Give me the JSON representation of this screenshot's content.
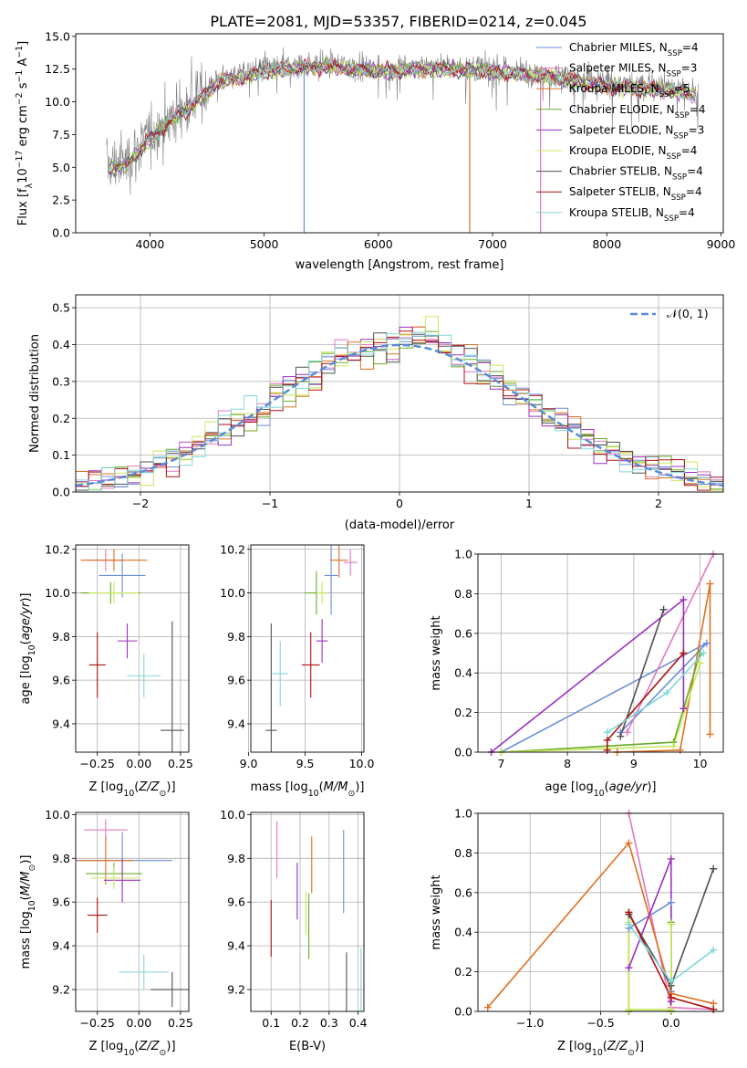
{
  "figure_title": "PLATE=2081, MJD=53357, FIBERID=0214, z=0.045",
  "chart_data": [
    {
      "id": "spectrum",
      "type": "line",
      "title": "PLATE=2081, MJD=53357, FIBERID=0214, z=0.045",
      "xlabel": "wavelength [Angstrom, rest frame]",
      "ylabel": "Flux [f_λ 10^-17 erg cm^-2 s^-1 A^-1]",
      "xlim": [
        3350,
        9020
      ],
      "ylim": [
        0,
        15.2
      ],
      "xticks": [
        4000,
        5000,
        6000,
        7000,
        8000,
        9000
      ],
      "yticks": [
        0.0,
        2.5,
        5.0,
        7.5,
        10.0,
        12.5,
        15.0
      ],
      "grid": false,
      "legend_position": "upper-right",
      "data_envelope": [
        [
          3620,
          5.2
        ],
        [
          3800,
          5.5
        ],
        [
          4000,
          7.5
        ],
        [
          4300,
          9.6
        ],
        [
          4600,
          11.8
        ],
        [
          5000,
          12.6
        ],
        [
          5500,
          13.0
        ],
        [
          6000,
          12.6
        ],
        [
          6500,
          12.8
        ],
        [
          7000,
          12.6
        ],
        [
          7500,
          12.2
        ],
        [
          8000,
          11.5
        ],
        [
          8500,
          11.2
        ],
        [
          8800,
          10.8
        ]
      ],
      "data_color": "#808080",
      "series": [
        {
          "name": "Chabrier MILES, N_SSP=4",
          "sub": "SSP",
          "num": "4",
          "color": "#6a8fd8",
          "drop_x": 5350
        },
        {
          "name": "Salpeter MILES, N_SSP=3",
          "sub": "SSP",
          "num": "3",
          "color": "#e377c2",
          "drop_x": 7420
        },
        {
          "name": "Kroupa MILES, N_SSP=5",
          "sub": "SSP",
          "num": "5",
          "color": "#e07020",
          "drop_x": 6800
        },
        {
          "name": "Chabrier ELODIE, N_SSP=4",
          "sub": "SSP",
          "num": "4",
          "color": "#6aaa2a"
        },
        {
          "name": "Salpeter ELODIE, N_SSP=3",
          "sub": "SSP",
          "num": "3",
          "color": "#9c2fbf"
        },
        {
          "name": "Kroupa ELODIE, N_SSP=4",
          "sub": "SSP",
          "num": "4",
          "color": "#c8e85a"
        },
        {
          "name": "Chabrier STELIB, N_SSP=4",
          "sub": "SSP",
          "num": "4",
          "color": "#505050"
        },
        {
          "name": "Salpeter STELIB, N_SSP=4",
          "sub": "SSP",
          "num": "4",
          "color": "#b01010"
        },
        {
          "name": "Kroupa STELIB, N_SSP=4",
          "sub": "SSP",
          "num": "4",
          "color": "#80d8dc"
        }
      ]
    },
    {
      "id": "residuals",
      "type": "line",
      "xlabel": "(data-model)/error",
      "ylabel": "Normed distribution",
      "xlim": [
        -2.5,
        2.5
      ],
      "ylim": [
        0,
        0.535
      ],
      "xticks": [
        -2,
        -1,
        0,
        1,
        2
      ],
      "xticklabels": [
        "−2",
        "−1",
        "0",
        "1",
        "2"
      ],
      "yticks": [
        0.0,
        0.1,
        0.2,
        0.3,
        0.4,
        0.5
      ],
      "grid": true,
      "legend_position": "upper-right",
      "legend_label": "𝒩(0, 1)",
      "normal_color": "#5b8bd8",
      "hist_bin_width": 0.1,
      "hist_profile": [
        [
          -2.5,
          0.02
        ],
        [
          -2.0,
          0.05
        ],
        [
          -1.5,
          0.13
        ],
        [
          -1.0,
          0.24
        ],
        [
          -0.5,
          0.36
        ],
        [
          0.0,
          0.41
        ],
        [
          0.2,
          0.43
        ],
        [
          0.5,
          0.36
        ],
        [
          1.0,
          0.25
        ],
        [
          1.5,
          0.13
        ],
        [
          2.0,
          0.06
        ],
        [
          2.5,
          0.02
        ]
      ]
    },
    {
      "id": "age-vs-Z",
      "type": "scatter",
      "xlabel": "Z [log10(Z/Z⊙)]",
      "ylabel": "age [log10(age/yr)]",
      "xlim": [
        -0.38,
        0.3
      ],
      "ylim": [
        9.27,
        10.22
      ],
      "xticks": [
        -0.25,
        0.0,
        0.25
      ],
      "xticklabels": [
        "−0.25",
        "0.00",
        "0.25"
      ],
      "yticks": [
        9.4,
        9.6,
        9.8,
        10.0,
        10.2
      ],
      "grid": true,
      "points": [
        {
          "x": -0.1,
          "y": 10.08,
          "xerr": 0.14,
          "yerr": 0.1,
          "color": "#6a8fd8"
        },
        {
          "x": -0.2,
          "y": 10.15,
          "xerr": 0.11,
          "yerr": 0.05,
          "color": "#e377c2"
        },
        {
          "x": -0.15,
          "y": 10.15,
          "xerr": 0.2,
          "yerr": 0.05,
          "color": "#e07020"
        },
        {
          "x": -0.17,
          "y": 10.0,
          "xerr": 0.18,
          "yerr": 0.05,
          "color": "#6aaa2a"
        },
        {
          "x": -0.07,
          "y": 9.78,
          "xerr": 0.06,
          "yerr": 0.08,
          "color": "#9c2fbf"
        },
        {
          "x": -0.15,
          "y": 10.0,
          "xerr": 0.15,
          "yerr": 0.05,
          "color": "#c8e85a"
        },
        {
          "x": 0.2,
          "y": 9.37,
          "xerr": 0.07,
          "yerr": 0.5,
          "color": "#505050"
        },
        {
          "x": -0.25,
          "y": 9.67,
          "xerr": 0.05,
          "yerr": 0.15,
          "color": "#b01010"
        },
        {
          "x": 0.03,
          "y": 9.62,
          "xerr": 0.1,
          "yerr": 0.1,
          "color": "#80d8dc"
        }
      ]
    },
    {
      "id": "age-vs-mass",
      "type": "scatter",
      "xlabel": "mass [log10(M/M⊙)]",
      "ylabel": "",
      "xlim": [
        9.02,
        10.02
      ],
      "ylim": [
        9.27,
        10.22
      ],
      "xticks": [
        9.0,
        9.5,
        10.0
      ],
      "xticklabels": [
        "9.0",
        "9.5",
        "10.0"
      ],
      "yticks": [
        9.4,
        9.6,
        9.8,
        10.0,
        10.2
      ],
      "grid": true,
      "points": [
        {
          "x": 9.73,
          "y": 10.08,
          "xerr": 0.06,
          "yerr": 0.18,
          "color": "#6a8fd8"
        },
        {
          "x": 9.9,
          "y": 10.14,
          "xerr": 0.06,
          "yerr": 0.06,
          "color": "#e377c2"
        },
        {
          "x": 9.8,
          "y": 10.15,
          "xerr": 0.08,
          "yerr": 0.08,
          "color": "#e07020"
        },
        {
          "x": 9.6,
          "y": 10.0,
          "xerr": 0.1,
          "yerr": 0.1,
          "color": "#6aaa2a"
        },
        {
          "x": 9.65,
          "y": 9.78,
          "xerr": 0.05,
          "yerr": 0.1,
          "color": "#9c2fbf"
        },
        {
          "x": 9.65,
          "y": 10.0,
          "xerr": 0.05,
          "yerr": 0.05,
          "color": "#c8e85a"
        },
        {
          "x": 9.2,
          "y": 9.37,
          "xerr": 0.05,
          "yerr": 0.49,
          "color": "#505050"
        },
        {
          "x": 9.55,
          "y": 9.67,
          "xerr": 0.08,
          "yerr": 0.15,
          "color": "#b01010"
        },
        {
          "x": 9.28,
          "y": 9.63,
          "xerr": 0.07,
          "yerr": 0.15,
          "color": "#80d8dc"
        }
      ]
    },
    {
      "id": "massweight-vs-age",
      "type": "line",
      "xlabel": "age [log10(age/yr)]",
      "ylabel": "mass weight",
      "xlim": [
        6.65,
        10.35
      ],
      "ylim": [
        0,
        1.0
      ],
      "xticks": [
        7,
        8,
        9,
        10
      ],
      "yticks": [
        0.0,
        0.2,
        0.4,
        0.6,
        0.8,
        1.0
      ],
      "grid": true,
      "series": [
        {
          "color": "#6a8fd8",
          "points": [
            [
              7.0,
              0.0
            ],
            [
              10.1,
              0.55
            ],
            [
              8.8,
              0.1
            ]
          ]
        },
        {
          "color": "#e377c2",
          "points": [
            [
              8.9,
              0.1
            ],
            [
              10.2,
              1.0
            ]
          ]
        },
        {
          "color": "#e07020",
          "points": [
            [
              8.75,
              0.0
            ],
            [
              9.7,
              0.01
            ],
            [
              10.15,
              0.85
            ],
            [
              10.15,
              0.09
            ]
          ]
        },
        {
          "color": "#6aaa2a",
          "points": [
            [
              7.0,
              0.0
            ],
            [
              9.6,
              0.05
            ],
            [
              10.0,
              0.5
            ]
          ]
        },
        {
          "color": "#9c2fbf",
          "points": [
            [
              6.85,
              0.0
            ],
            [
              9.75,
              0.77
            ],
            [
              9.75,
              0.22
            ]
          ]
        },
        {
          "color": "#c8e85a",
          "points": [
            [
              7.0,
              0.0
            ],
            [
              9.6,
              0.03
            ],
            [
              10.0,
              0.45
            ]
          ]
        },
        {
          "color": "#505050",
          "points": [
            [
              8.8,
              0.08
            ],
            [
              9.45,
              0.72
            ]
          ]
        },
        {
          "color": "#b01010",
          "points": [
            [
              8.6,
              0.01
            ],
            [
              8.6,
              0.06
            ],
            [
              9.75,
              0.5
            ]
          ]
        },
        {
          "color": "#80d8dc",
          "points": [
            [
              8.6,
              0.1
            ],
            [
              9.5,
              0.3
            ],
            [
              10.05,
              0.5
            ]
          ]
        }
      ]
    },
    {
      "id": "mass-vs-Z",
      "type": "scatter",
      "xlabel": "Z [log10(Z/Z⊙)]",
      "ylabel": "mass [log10(M/M⊙)]",
      "xlim": [
        -0.38,
        0.3
      ],
      "ylim": [
        9.1,
        10.01
      ],
      "xticks": [
        -0.25,
        0.0,
        0.25
      ],
      "xticklabels": [
        "−0.25",
        "0.00",
        "0.25"
      ],
      "yticks": [
        9.2,
        9.4,
        9.6,
        9.8,
        10.0
      ],
      "grid": true,
      "points": [
        {
          "x": -0.1,
          "y": 9.79,
          "xerr": 0.3,
          "yerr": 0.13,
          "color": "#6a8fd8"
        },
        {
          "x": -0.2,
          "y": 9.93,
          "xerr": 0.13,
          "yerr": 0.05,
          "color": "#e377c2"
        },
        {
          "x": -0.2,
          "y": 9.79,
          "xerr": 0.17,
          "yerr": 0.11,
          "color": "#e07020"
        },
        {
          "x": -0.15,
          "y": 9.73,
          "xerr": 0.17,
          "yerr": 0.05,
          "color": "#6aaa2a"
        },
        {
          "x": -0.1,
          "y": 9.7,
          "xerr": 0.11,
          "yerr": 0.1,
          "color": "#9c2fbf"
        },
        {
          "x": -0.15,
          "y": 9.71,
          "xerr": 0.14,
          "yerr": 0.05,
          "color": "#c8e85a"
        },
        {
          "x": 0.2,
          "y": 9.2,
          "xerr": 0.13,
          "yerr": 0.08,
          "color": "#505050"
        },
        {
          "x": -0.25,
          "y": 9.54,
          "xerr": 0.06,
          "yerr": 0.08,
          "color": "#b01010"
        },
        {
          "x": 0.03,
          "y": 9.28,
          "xerr": 0.15,
          "yerr": 0.08,
          "color": "#80d8dc"
        }
      ]
    },
    {
      "id": "mass-vs-ebv",
      "type": "scatter",
      "xlabel": "E(B-V)",
      "ylabel": "",
      "xlim": [
        0.03,
        0.42
      ],
      "ylim": [
        9.1,
        10.01
      ],
      "xticks": [
        0.1,
        0.2,
        0.3,
        0.4
      ],
      "xticklabels": [
        "0.1",
        "0.2",
        "0.3",
        "0.4"
      ],
      "yticks": [
        9.2,
        9.4,
        9.6,
        9.8,
        10.0
      ],
      "grid": true,
      "points": [
        {
          "x": 0.35,
          "y": 9.74,
          "yerr": 0.19,
          "color": "#6a8fd8"
        },
        {
          "x": 0.12,
          "y": 9.84,
          "yerr": 0.13,
          "color": "#e377c2"
        },
        {
          "x": 0.24,
          "y": 9.77,
          "yerr": 0.13,
          "color": "#e07020"
        },
        {
          "x": 0.23,
          "y": 9.49,
          "yerr": 0.15,
          "color": "#6aaa2a"
        },
        {
          "x": 0.19,
          "y": 9.65,
          "yerr": 0.13,
          "color": "#9c2fbf"
        },
        {
          "x": 0.22,
          "y": 9.55,
          "yerr": 0.1,
          "color": "#c8e85a"
        },
        {
          "x": 0.36,
          "y": 9.23,
          "yerr": 0.14,
          "color": "#505050"
        },
        {
          "x": 0.1,
          "y": 9.48,
          "yerr": 0.13,
          "color": "#b01010"
        },
        {
          "x": 0.41,
          "y": 9.23,
          "yerr": 0.16,
          "color": "#80d8dc"
        }
      ]
    },
    {
      "id": "massweight-vs-Z",
      "type": "line",
      "xlabel": "Z [log10(Z/Z⊙)]",
      "ylabel": "mass weight",
      "xlim": [
        -1.37,
        0.37
      ],
      "ylim": [
        0,
        1.0
      ],
      "xticks": [
        -1.0,
        -0.5,
        0.0
      ],
      "xticklabels": [
        "−1.0",
        "−0.5",
        "0.0"
      ],
      "yticks": [
        0.0,
        0.2,
        0.4,
        0.6,
        0.8,
        1.0
      ],
      "grid": true,
      "series": [
        {
          "color": "#6a8fd8",
          "points": [
            [
              -0.3,
              0.42
            ],
            [
              0.0,
              0.55
            ],
            [
              0.0,
              0.1
            ]
          ]
        },
        {
          "color": "#e377c2",
          "points": [
            [
              -0.3,
              1.0
            ],
            [
              0.0,
              0.02
            ],
            [
              0.3,
              0.01
            ]
          ]
        },
        {
          "color": "#e07020",
          "points": [
            [
              -1.3,
              0.02
            ],
            [
              -0.3,
              0.85
            ],
            [
              0.0,
              0.09
            ],
            [
              0.3,
              0.04
            ]
          ]
        },
        {
          "color": "#6aaa2a",
          "points": [
            [
              -0.3,
              0.5
            ],
            [
              -0.3,
              0.0
            ],
            [
              0.0,
              0.0
            ],
            [
              0.0,
              0.45
            ]
          ]
        },
        {
          "color": "#9c2fbf",
          "points": [
            [
              -0.3,
              0.22
            ],
            [
              0.0,
              0.77
            ],
            [
              0.0,
              0.05
            ]
          ]
        },
        {
          "color": "#c8e85a",
          "points": [
            [
              -0.3,
              0.45
            ],
            [
              -0.3,
              0.01
            ],
            [
              0.0,
              0.01
            ],
            [
              0.0,
              0.44
            ]
          ]
        },
        {
          "color": "#505050",
          "points": [
            [
              0.3,
              0.72
            ],
            [
              0.0,
              0.13
            ],
            [
              -0.3,
              0.49
            ]
          ]
        },
        {
          "color": "#b01010",
          "points": [
            [
              -0.3,
              0.5
            ],
            [
              0.0,
              0.07
            ],
            [
              0.3,
              0.01
            ]
          ]
        },
        {
          "color": "#80d8dc",
          "points": [
            [
              -0.3,
              0.44
            ],
            [
              0.0,
              0.15
            ],
            [
              0.3,
              0.31
            ]
          ]
        }
      ]
    }
  ]
}
